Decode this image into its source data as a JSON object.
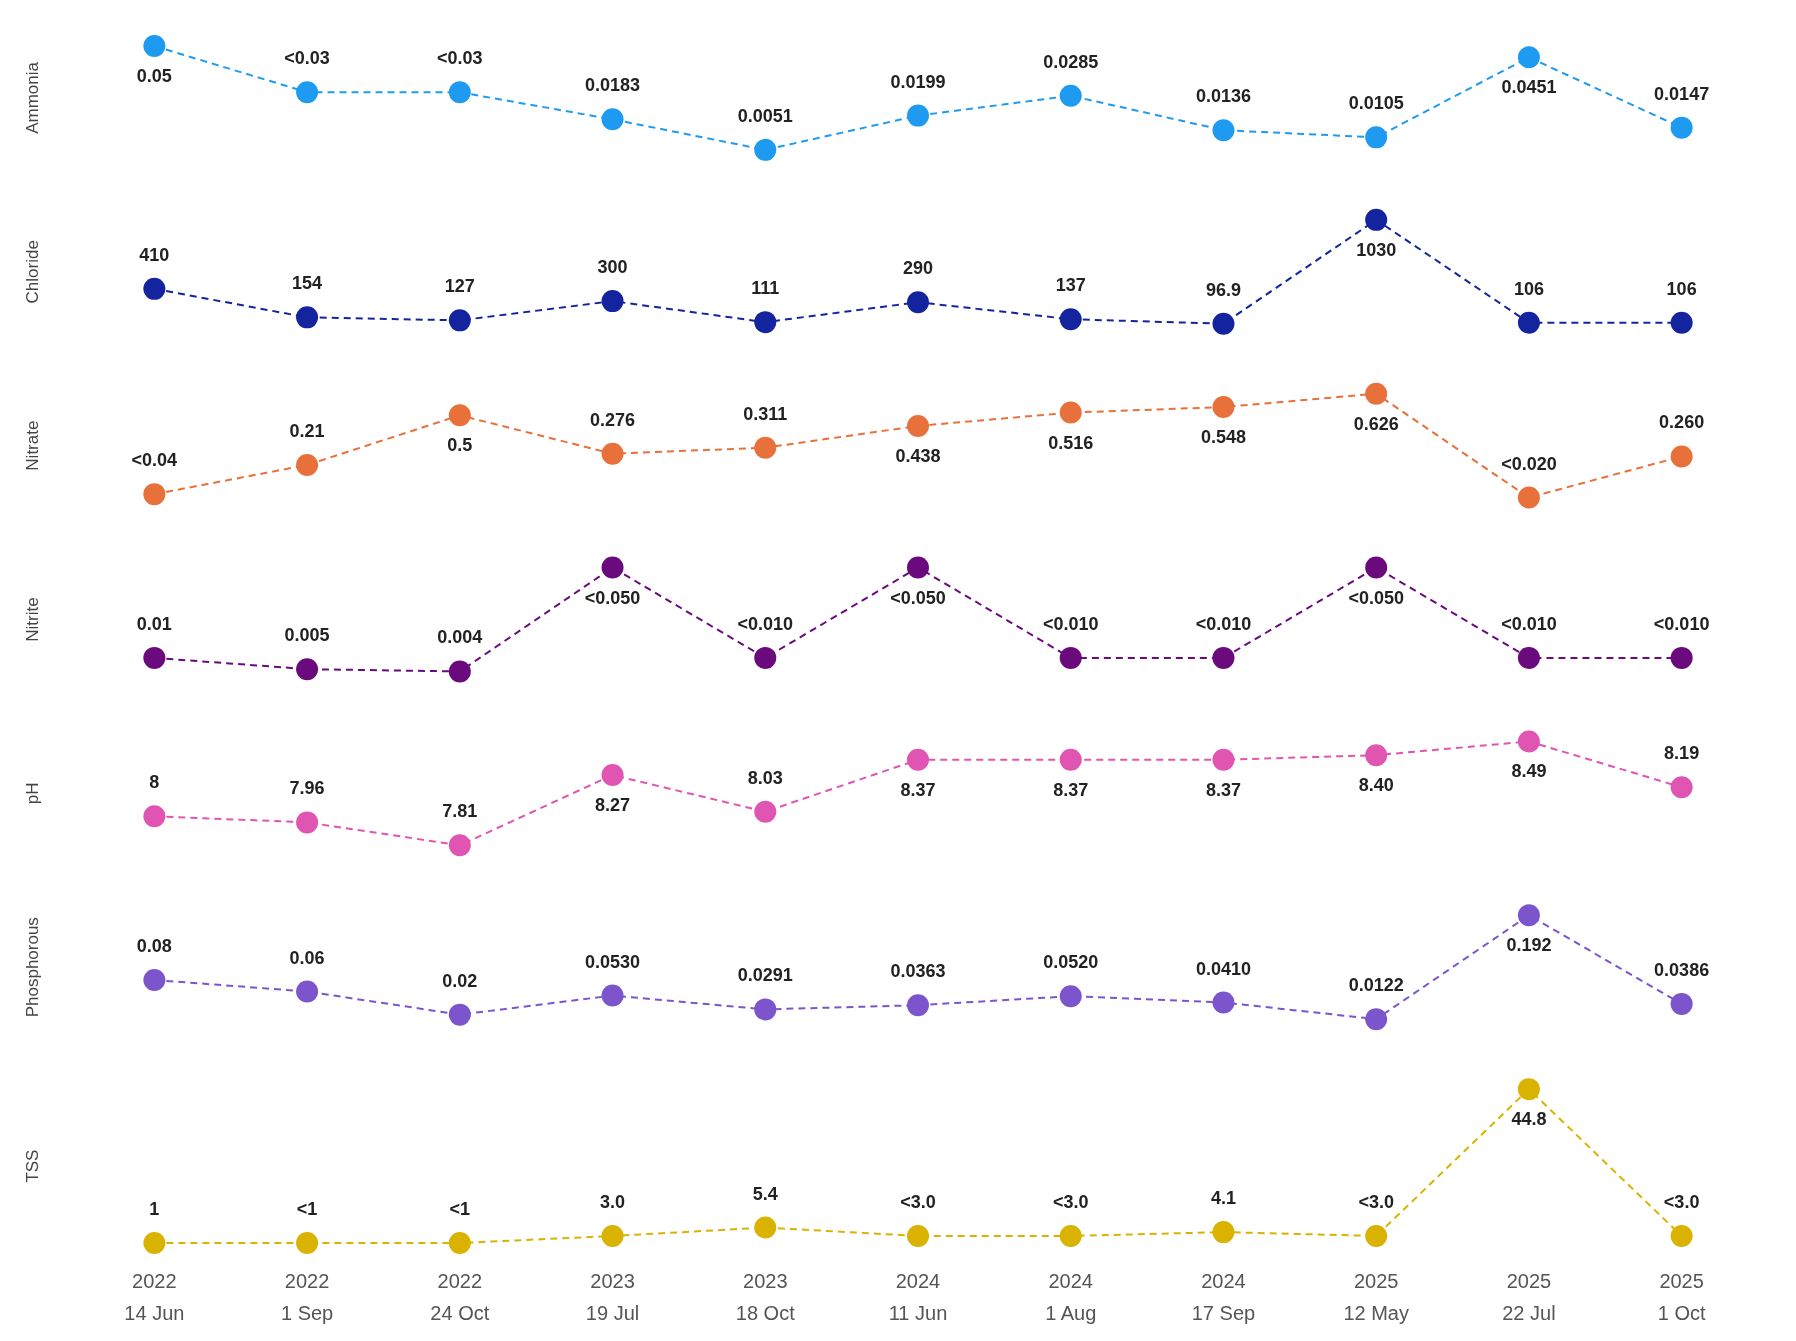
{
  "chart_data": [
    {
      "type": "line",
      "ylabel": "Ammonia",
      "categories": [
        null,
        null,
        null,
        null,
        null,
        null,
        null,
        null,
        null,
        null,
        null
      ],
      "values": [
        0.05,
        0.03,
        0.03,
        0.0183,
        0.0051,
        0.0199,
        0.0285,
        0.0136,
        0.0105,
        0.0451,
        0.0147
      ],
      "value_labels": [
        "0.05",
        "<0.03",
        "<0.03",
        "0.0183",
        "0.0051",
        "0.0199",
        "0.0285",
        "0.0136",
        "0.0105",
        "0.0451",
        "0.0147"
      ],
      "color": "#1e9bf0",
      "marker": "circle",
      "line_style": "dashed"
    },
    {
      "type": "line",
      "ylabel": "Chloride",
      "categories": [
        null,
        null,
        null,
        null,
        null,
        null,
        null,
        null,
        null,
        null,
        null
      ],
      "values": [
        410,
        154,
        127,
        300,
        111,
        290,
        137,
        96.9,
        1030,
        106,
        106
      ],
      "value_labels": [
        "410",
        "154",
        "127",
        "300",
        "111",
        "290",
        "137",
        "96.9",
        "1030",
        "106",
        "106"
      ],
      "color": "#13249e",
      "marker": "circle",
      "line_style": "dashed"
    },
    {
      "type": "line",
      "ylabel": "Nitrate",
      "categories": [
        null,
        null,
        null,
        null,
        null,
        null,
        null,
        null,
        null,
        null,
        null
      ],
      "values": [
        0.04,
        0.21,
        0.5,
        0.276,
        0.311,
        0.438,
        0.516,
        0.548,
        0.626,
        0.02,
        0.26
      ],
      "value_labels": [
        "<0.04",
        "0.21",
        "0.5",
        "0.276",
        "0.311",
        "0.438",
        "0.516",
        "0.548",
        "0.626",
        "<0.020",
        "0.260"
      ],
      "color": "#e8703a",
      "marker": "circle",
      "line_style": "dashed"
    },
    {
      "type": "line",
      "ylabel": "Nitrite",
      "categories": [
        null,
        null,
        null,
        null,
        null,
        null,
        null,
        null,
        null,
        null,
        null
      ],
      "values": [
        0.01,
        0.005,
        0.004,
        0.05,
        0.01,
        0.05,
        0.01,
        0.01,
        0.05,
        0.01,
        0.01
      ],
      "value_labels": [
        "0.01",
        "0.005",
        "0.004",
        "<0.050",
        "<0.010",
        "<0.050",
        "<0.010",
        "<0.010",
        "<0.050",
        "<0.010",
        "<0.010"
      ],
      "color": "#6b0a7c",
      "marker": "circle",
      "line_style": "dashed"
    },
    {
      "type": "line",
      "ylabel": "pH",
      "categories": [
        null,
        null,
        null,
        null,
        null,
        null,
        null,
        null,
        null,
        null,
        null
      ],
      "values": [
        8,
        7.96,
        7.81,
        8.27,
        8.03,
        8.37,
        8.37,
        8.37,
        8.4,
        8.49,
        8.19
      ],
      "value_labels": [
        "8",
        "7.96",
        "7.81",
        "8.27",
        "8.03",
        "8.37",
        "8.37",
        "8.37",
        "8.40",
        "8.49",
        "8.19"
      ],
      "color": "#e055b2",
      "marker": "circle",
      "line_style": "dashed"
    },
    {
      "type": "line",
      "ylabel": "Phosphorous",
      "categories": [
        null,
        null,
        null,
        null,
        null,
        null,
        null,
        null,
        null,
        null,
        null
      ],
      "values": [
        0.08,
        0.06,
        0.02,
        0.053,
        0.0291,
        0.0363,
        0.052,
        0.041,
        0.0122,
        0.192,
        0.0386
      ],
      "value_labels": [
        "0.08",
        "0.06",
        "0.02",
        "0.0530",
        "0.0291",
        "0.0363",
        "0.0520",
        "0.0410",
        "0.0122",
        "0.192",
        "0.0386"
      ],
      "color": "#7c55cc",
      "marker": "circle",
      "line_style": "dashed"
    },
    {
      "type": "line",
      "ylabel": "TSS",
      "categories": [
        "2022\n14 Jun",
        "2022\n1 Sep",
        "2022\n24 Oct",
        "2023\n19 Jul",
        "2023\n18 Oct",
        "2024\n11 Jun",
        "2024\n1 Aug",
        "2024\n17 Sep",
        "2025\n12 May",
        "2025\n22 Jul",
        "2025\n1 Oct"
      ],
      "values": [
        1,
        1,
        1,
        3.0,
        5.4,
        3.0,
        3.0,
        4.1,
        3.0,
        44.8,
        3.0
      ],
      "value_labels": [
        "1",
        "<1",
        "<1",
        "3.0",
        "5.4",
        "<3.0",
        "<3.0",
        "4.1",
        "<3.0",
        "44.8",
        "<3.0"
      ],
      "color": "#d9b300",
      "marker": "circle",
      "line_style": "dashed",
      "tick_labels": "x"
    }
  ]
}
